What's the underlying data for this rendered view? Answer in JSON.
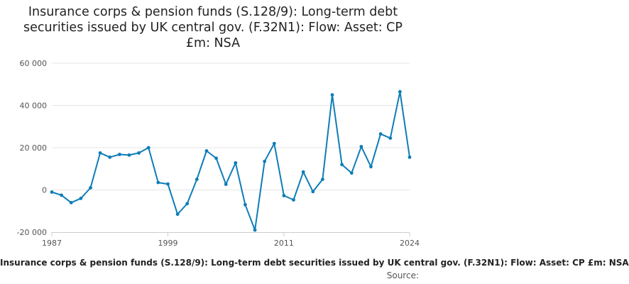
{
  "chart_data": {
    "type": "line",
    "title": "Insurance corps & pension funds (S.128/9): Long-term debt securities issued by UK central gov. (F.32N1): Flow: Asset: CP £m: NSA",
    "legend_label": "Insurance corps & pension funds (S.128/9): Long-term debt securities issued by UK central gov. (F.32N1): Flow: Asset: CP £m: NSA",
    "source_label": "Source:",
    "x_tick_labels": [
      "1987",
      "1999",
      "2011",
      "2024"
    ],
    "x_tick_values": [
      1987,
      1999,
      2011,
      2024
    ],
    "y_tick_labels": [
      "-20 000",
      "0",
      "20 000",
      "40 000",
      "60 000"
    ],
    "y_tick_values": [
      -20000,
      0,
      20000,
      40000,
      60000
    ],
    "xlim": [
      1987,
      2024
    ],
    "ylim": [
      -20000,
      60000
    ],
    "grid": true,
    "series_color": "#0e7db8",
    "series": [
      {
        "x": [
          1987,
          1988,
          1989,
          1990,
          1991,
          1992,
          1993,
          1994,
          1995,
          1996,
          1997,
          1998,
          1999,
          2000,
          2001,
          2002,
          2003,
          2004,
          2005,
          2006,
          2007,
          2008,
          2009,
          2010,
          2011,
          2012,
          2013,
          2014,
          2015,
          2016,
          2017,
          2018,
          2019,
          2020,
          2021,
          2022,
          2023,
          2024
        ],
        "values": [
          -1000,
          -2500,
          -6000,
          -4000,
          1000,
          17500,
          15500,
          16800,
          16500,
          17500,
          20000,
          3500,
          2800,
          -11500,
          -6500,
          5000,
          18500,
          15000,
          2700,
          12800,
          -7000,
          -19000,
          13500,
          22000,
          -2700,
          -4700,
          8500,
          -800,
          5000,
          45000,
          12000,
          8000,
          20500,
          11000,
          26500,
          24500,
          46500,
          15500
        ]
      }
    ]
  }
}
